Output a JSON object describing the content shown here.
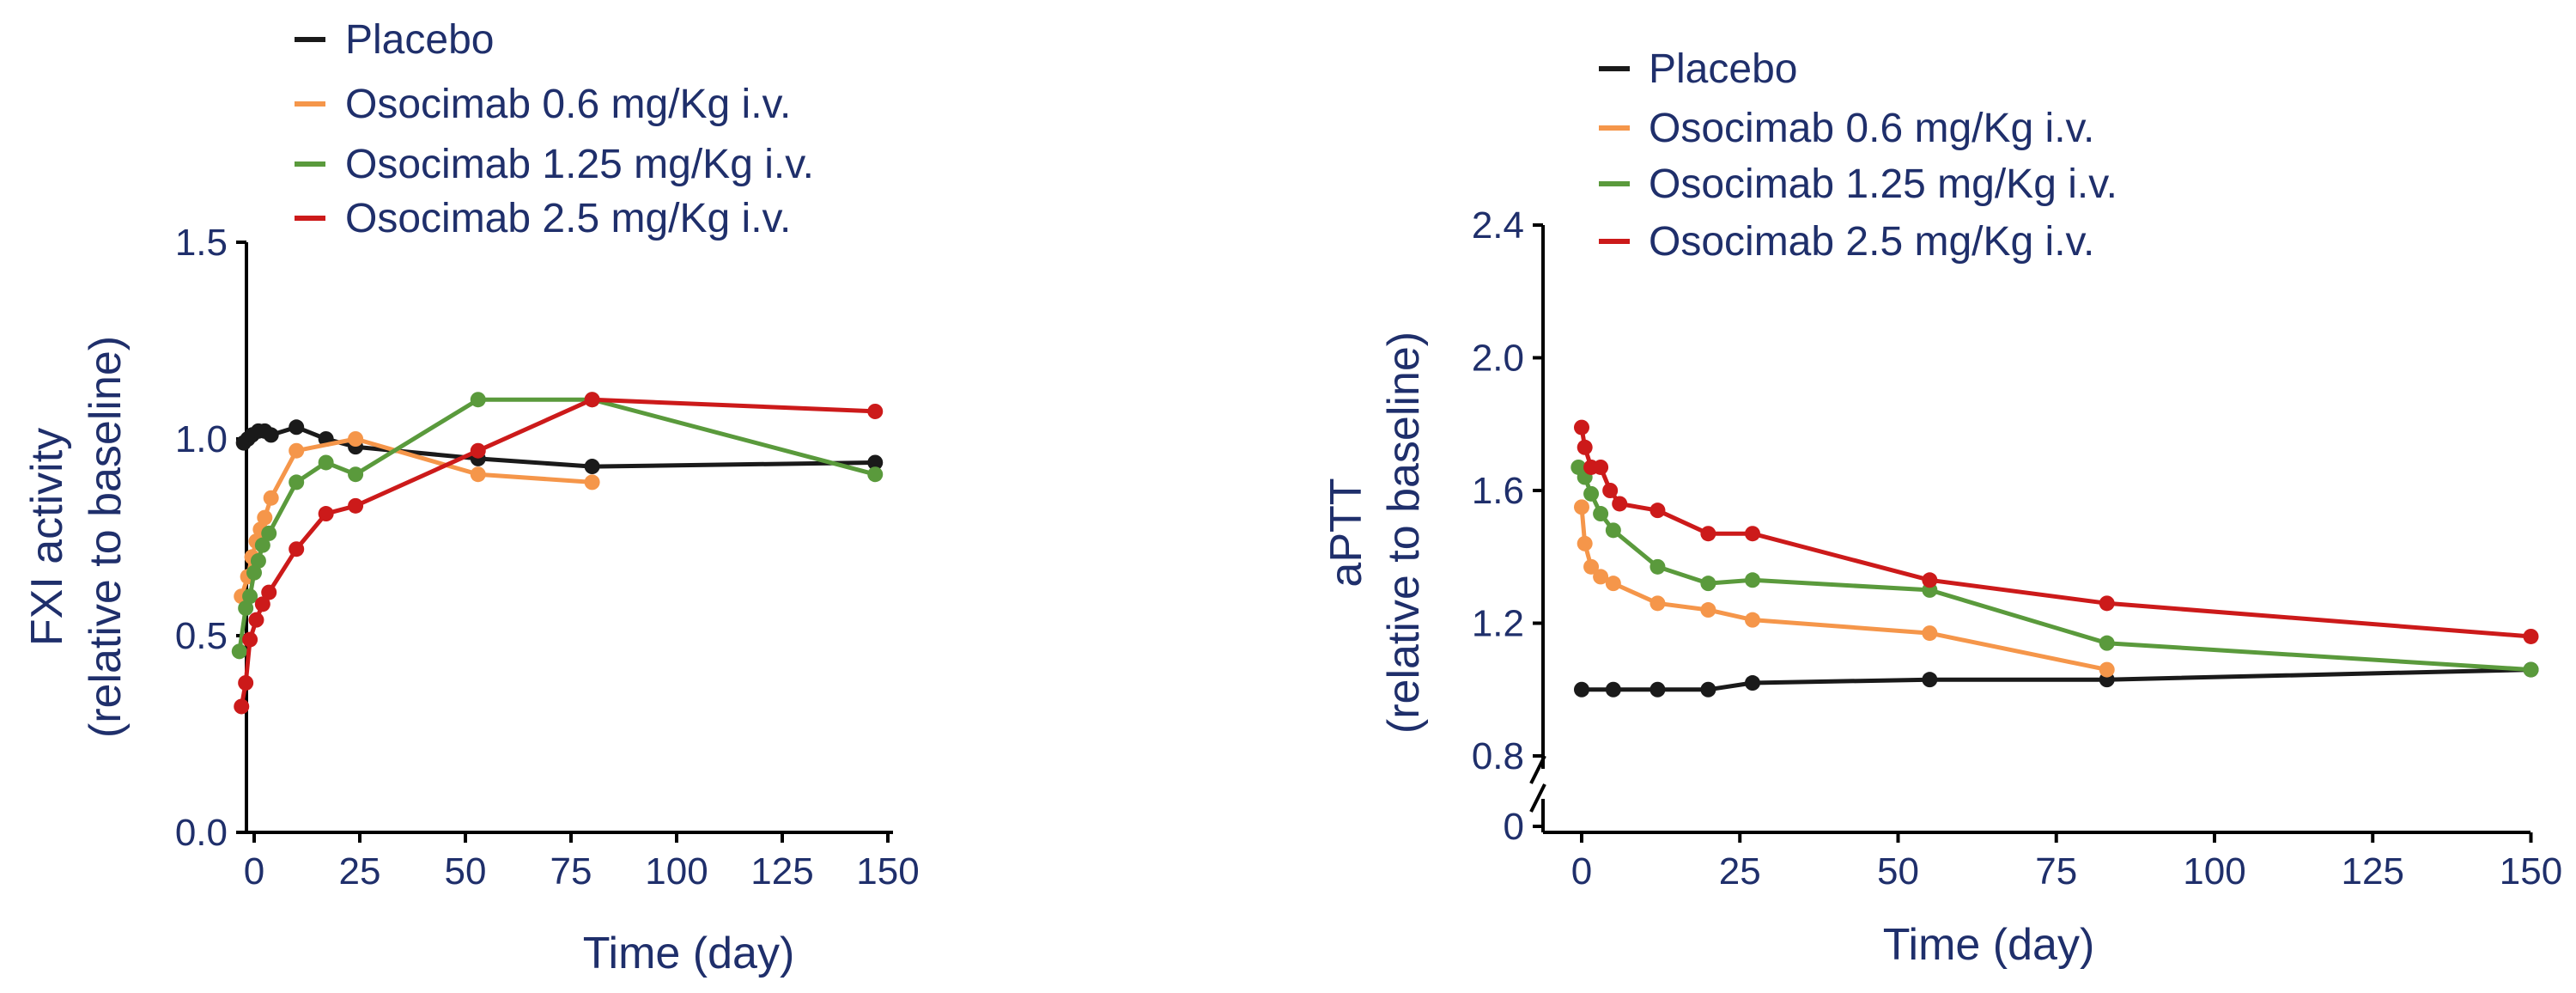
{
  "colors": {
    "text": "#1f2f6b",
    "axis": "#000000",
    "placebo": "#1a1a1a",
    "dose_0_6": "#f5964a",
    "dose_1_25": "#5a9a3c",
    "dose_2_5": "#cc1a1a"
  },
  "chart_data": [
    {
      "type": "line",
      "ylabel_line1": "FXI activity",
      "ylabel_line2": "(relative to baseline)",
      "xlabel": "Time (day)",
      "xlim": [
        -4,
        150
      ],
      "ylim": [
        0,
        1.5
      ],
      "xticks": [
        "0",
        "25",
        "50",
        "75",
        "100",
        "125",
        "150"
      ],
      "yticks": [
        "0.0",
        "0.5",
        "1.0",
        "1.5"
      ],
      "legend": [
        "Placebo",
        "Osocimab 0.6 mg/Kg i.v.",
        "Osocimab 1.25 mg/Kg i.v.",
        "Osocimab 2.5 mg/Kg i.v."
      ],
      "series": [
        {
          "name": "Placebo",
          "x": [
            -2.5,
            -1.5,
            -0.5,
            1,
            2.5,
            4,
            10,
            17,
            24,
            53,
            80,
            147
          ],
          "y": [
            0.99,
            1.0,
            1.01,
            1.02,
            1.02,
            1.01,
            1.03,
            1.0,
            0.98,
            0.95,
            0.93,
            0.94
          ]
        },
        {
          "name": "Osocimab 0.6 mg/Kg i.v.",
          "x": [
            -3,
            -1.5,
            -0.5,
            0.5,
            1.5,
            2.5,
            4,
            10,
            24,
            53,
            80
          ],
          "y": [
            0.6,
            0.65,
            0.7,
            0.74,
            0.77,
            0.8,
            0.85,
            0.97,
            1.0,
            0.91,
            0.89
          ]
        },
        {
          "name": "Osocimab 1.25 mg/Kg i.v.",
          "x": [
            -3.5,
            -2,
            -1,
            0,
            1,
            2,
            3.5,
            10,
            17,
            24,
            53,
            80,
            147
          ],
          "y": [
            0.46,
            0.57,
            0.6,
            0.66,
            0.69,
            0.73,
            0.76,
            0.89,
            0.94,
            0.91,
            1.1,
            1.1,
            0.91
          ]
        },
        {
          "name": "Osocimab 2.5 mg/Kg i.v.",
          "x": [
            -3,
            -2,
            -1,
            0.5,
            2,
            3.5,
            10,
            17,
            24,
            53,
            80,
            147
          ],
          "y": [
            0.32,
            0.38,
            0.49,
            0.54,
            0.58,
            0.61,
            0.72,
            0.81,
            0.83,
            0.97,
            1.1,
            1.07
          ]
        }
      ]
    },
    {
      "type": "line",
      "ylabel_line1": "aPTT",
      "ylabel_line2": "(relative to baseline)",
      "xlabel": "Time (day)",
      "xlim": [
        -4,
        150
      ],
      "ylim": [
        0.8,
        2.4
      ],
      "axis_break": true,
      "axis_break_label": "0",
      "xticks": [
        "0",
        "25",
        "50",
        "75",
        "100",
        "125",
        "150"
      ],
      "yticks": [
        "0.8",
        "1.2",
        "1.6",
        "2.0",
        "2.4"
      ],
      "legend": [
        "Placebo",
        "Osocimab 0.6 mg/Kg i.v.",
        "Osocimab 1.25 mg/Kg i.v.",
        "Osocimab 2.5 mg/Kg i.v."
      ],
      "series": [
        {
          "name": "Placebo",
          "x": [
            0,
            5,
            12,
            20,
            27,
            55,
            83,
            150
          ],
          "y": [
            1.0,
            1.0,
            1.0,
            1.0,
            1.02,
            1.03,
            1.03,
            1.06
          ]
        },
        {
          "name": "Osocimab 0.6 mg/Kg i.v.",
          "x": [
            0,
            0.5,
            1.5,
            3,
            5,
            12,
            20,
            27,
            55,
            83
          ],
          "y": [
            1.55,
            1.44,
            1.37,
            1.34,
            1.32,
            1.26,
            1.24,
            1.21,
            1.17,
            1.06
          ]
        },
        {
          "name": "Osocimab 1.25 mg/Kg i.v.",
          "x": [
            -0.5,
            0.5,
            1.5,
            3,
            5,
            12,
            20,
            27,
            55,
            83,
            150
          ],
          "y": [
            1.67,
            1.64,
            1.59,
            1.53,
            1.48,
            1.37,
            1.32,
            1.33,
            1.3,
            1.14,
            1.06
          ]
        },
        {
          "name": "Osocimab 2.5 mg/Kg i.v.",
          "x": [
            0,
            0.5,
            1.5,
            3,
            4.5,
            6,
            12,
            20,
            27,
            55,
            83,
            150
          ],
          "y": [
            1.79,
            1.73,
            1.67,
            1.67,
            1.6,
            1.56,
            1.54,
            1.47,
            1.47,
            1.33,
            1.26,
            1.16
          ]
        }
      ]
    }
  ]
}
